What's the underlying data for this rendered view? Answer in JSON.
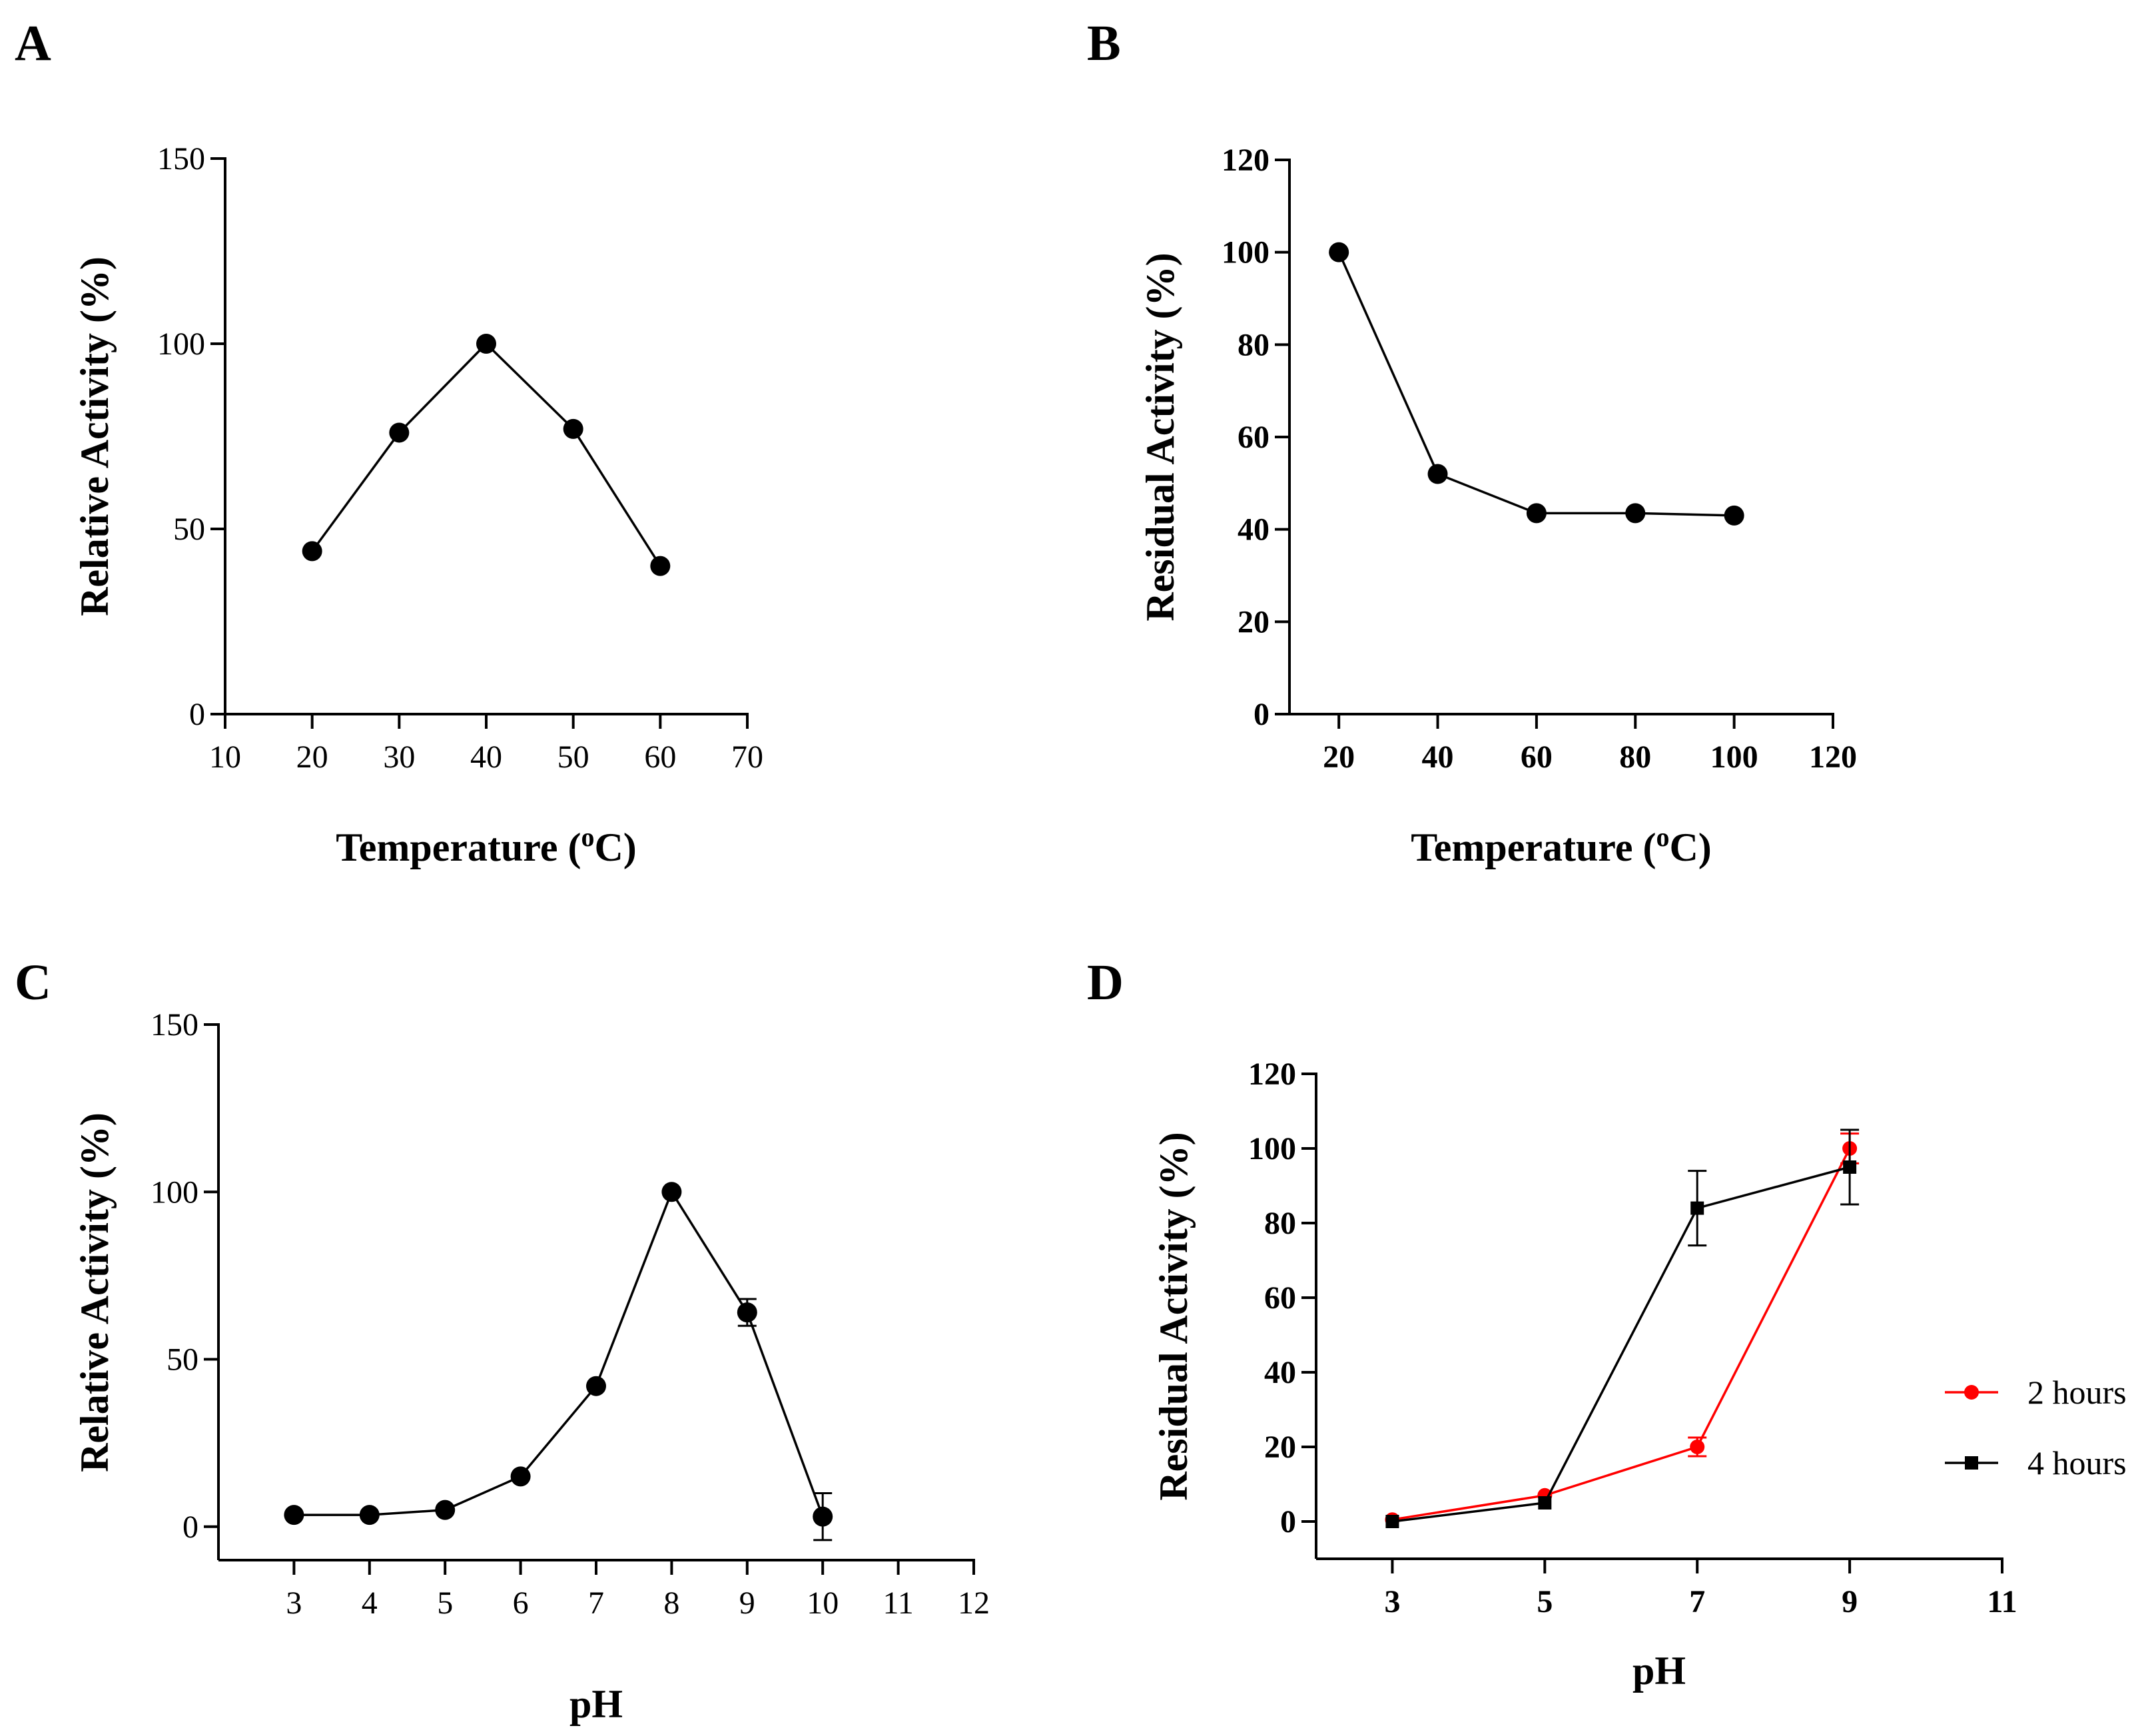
{
  "chart_data": [
    {
      "panel": "A",
      "type": "line",
      "xlabel": "Temperature (",
      "xlabel_sup": "o",
      "xlabel_tail": "C)",
      "ylabel": "Relative Activity (%)",
      "xlim": [
        10,
        70
      ],
      "ylim": [
        0,
        150
      ],
      "xticks": [
        10,
        20,
        30,
        40,
        50,
        60,
        70
      ],
      "yticks": [
        0,
        50,
        100,
        150
      ],
      "bold_ticks": false,
      "series": [
        {
          "name": "activity",
          "color": "#000000",
          "marker": "circle",
          "x": [
            20,
            30,
            40,
            50,
            60
          ],
          "y": [
            44,
            76,
            100,
            77,
            40
          ],
          "err": [
            0,
            0,
            0,
            0,
            0
          ]
        }
      ]
    },
    {
      "panel": "B",
      "type": "line",
      "xlabel": "Temperature (",
      "xlabel_sup": "o",
      "xlabel_tail": "C)",
      "ylabel": "Residual Activity (%)",
      "xlim": [
        10,
        120
      ],
      "ylim": [
        0,
        120
      ],
      "xticks": [
        20,
        40,
        60,
        80,
        100,
        120
      ],
      "yticks": [
        0,
        20,
        40,
        60,
        80,
        100,
        120
      ],
      "bold_ticks": true,
      "series": [
        {
          "name": "activity",
          "color": "#000000",
          "marker": "circle",
          "x": [
            20,
            40,
            60,
            80,
            100
          ],
          "y": [
            100,
            52,
            43.5,
            43.5,
            43
          ],
          "err": [
            0,
            0,
            0,
            0,
            0
          ]
        }
      ]
    },
    {
      "panel": "C",
      "type": "line",
      "xlabel": "pH",
      "ylabel": "Relative Activity (%)",
      "xlim": [
        2,
        12
      ],
      "ylim": [
        -10,
        150
      ],
      "xticks": [
        3,
        4,
        5,
        6,
        7,
        8,
        9,
        10,
        11,
        12
      ],
      "yticks": [
        0,
        50,
        100,
        150
      ],
      "bold_ticks": false,
      "series": [
        {
          "name": "activity",
          "color": "#000000",
          "marker": "circle",
          "x": [
            3,
            4,
            5,
            6,
            7,
            8,
            9,
            10
          ],
          "y": [
            3.5,
            3.5,
            5,
            15,
            42,
            100,
            64,
            3
          ],
          "err": [
            0,
            0,
            0,
            0,
            0,
            0,
            4,
            7
          ]
        }
      ]
    },
    {
      "panel": "D",
      "type": "line",
      "xlabel": "pH",
      "ylabel": "Residual Activity (%)",
      "xlim": [
        2,
        11
      ],
      "ylim": [
        -10,
        120
      ],
      "xticks": [
        3,
        5,
        7,
        9,
        11
      ],
      "yticks": [
        0,
        20,
        40,
        60,
        80,
        100,
        120
      ],
      "bold_ticks": true,
      "legend_position": "right",
      "series": [
        {
          "name": "2 hours",
          "color": "#ff0000",
          "marker": "circle",
          "x": [
            3,
            5,
            7,
            9
          ],
          "y": [
            0.5,
            7,
            20,
            100
          ],
          "err": [
            0,
            0,
            2.5,
            4
          ]
        },
        {
          "name": "4 hours",
          "color": "#000000",
          "marker": "square",
          "x": [
            3,
            5,
            7,
            9
          ],
          "y": [
            0,
            5,
            84,
            95
          ],
          "err": [
            0,
            0,
            10,
            10
          ]
        }
      ]
    }
  ]
}
